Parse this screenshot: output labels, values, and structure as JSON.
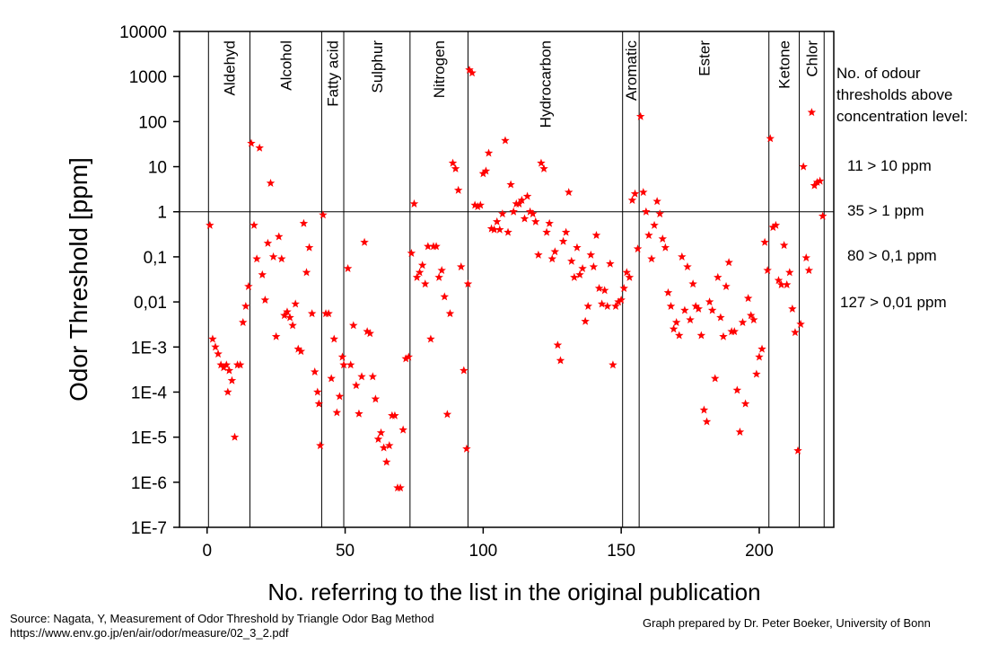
{
  "chart_data": {
    "type": "scatter",
    "title": "",
    "xlabel": "No. referring to the list in the original publication",
    "ylabel": "Odor Threshold [ppm]",
    "xlim": [
      -10,
      227
    ],
    "x_ticks": [
      0,
      50,
      100,
      150,
      200
    ],
    "x_tick_labels": [
      "0",
      "50",
      "100",
      "150",
      "200"
    ],
    "y_scale": "log",
    "ylim": [
      1e-07,
      10000
    ],
    "y_ticks": [
      1e-07,
      1e-06,
      1e-05,
      0.0001,
      0.001,
      0.01,
      0.1,
      1,
      10,
      100,
      1000,
      10000
    ],
    "y_tick_labels": [
      "1E-7",
      "1E-6",
      "1E-5",
      "1E-4",
      "1E-3",
      "0,01",
      "0,1",
      "1",
      "10",
      "100",
      "1000",
      "10000"
    ],
    "grid": false,
    "legend": "none",
    "marker": "star",
    "marker_color": "#ff0000",
    "reference_line_y": 1,
    "groups": [
      {
        "label": "Aldehyd",
        "start": 0.5,
        "end": 15.5
      },
      {
        "label": "Alcohol",
        "start": 15.5,
        "end": 41.5
      },
      {
        "label": "Fatty acid",
        "start": 41.5,
        "end": 49.5
      },
      {
        "label": "Sulphur",
        "start": 49.5,
        "end": 73.5
      },
      {
        "label": "Nitrogen",
        "start": 73.5,
        "end": 94.5
      },
      {
        "label": "Hydrocarbon",
        "start": 94.5,
        "end": 150.5
      },
      {
        "label": "Aromatic",
        "start": 150.5,
        "end": 156.5
      },
      {
        "label": "Ester",
        "start": 156.5,
        "end": 203.5
      },
      {
        "label": "Ketone",
        "start": 203.5,
        "end": 214.5
      },
      {
        "label": "Chlor",
        "start": 214.5,
        "end": 223.5
      }
    ],
    "points": [
      [
        1,
        0.5
      ],
      [
        2,
        0.0015
      ],
      [
        3,
        0.001
      ],
      [
        4,
        0.0007
      ],
      [
        5,
        0.0004
      ],
      [
        6,
        0.00035
      ],
      [
        7,
        0.0004
      ],
      [
        7.5,
        0.0001
      ],
      [
        8,
        0.0003
      ],
      [
        9,
        0.00018
      ],
      [
        10,
        1e-05
      ],
      [
        11,
        0.0004
      ],
      [
        12,
        0.0004
      ],
      [
        13,
        0.0035
      ],
      [
        14,
        0.008
      ],
      [
        15,
        0.022
      ],
      [
        16,
        33
      ],
      [
        17,
        0.5
      ],
      [
        18,
        0.09
      ],
      [
        19,
        26
      ],
      [
        20,
        0.04
      ],
      [
        21,
        0.011
      ],
      [
        22,
        0.2
      ],
      [
        23,
        4.3
      ],
      [
        24,
        0.1
      ],
      [
        25,
        0.0017
      ],
      [
        26,
        0.28
      ],
      [
        27,
        0.09
      ],
      [
        28,
        0.005
      ],
      [
        29,
        0.006
      ],
      [
        30,
        0.0045
      ],
      [
        31,
        0.003
      ],
      [
        32,
        0.009
      ],
      [
        33,
        0.0009
      ],
      [
        34,
        0.0008
      ],
      [
        35,
        0.55
      ],
      [
        36,
        0.045
      ],
      [
        37,
        0.16
      ],
      [
        38,
        0.0055
      ],
      [
        39,
        0.00028
      ],
      [
        40,
        0.0001
      ],
      [
        40.5,
        5.5e-05
      ],
      [
        41,
        6.5e-06
      ],
      [
        42,
        0.85
      ],
      [
        43,
        0.0055
      ],
      [
        44,
        0.0055
      ],
      [
        45,
        0.0002
      ],
      [
        46,
        0.0015
      ],
      [
        47,
        3.5e-05
      ],
      [
        48,
        8e-05
      ],
      [
        49,
        0.0006
      ],
      [
        49.5,
        0.0004
      ],
      [
        51,
        0.055
      ],
      [
        52,
        0.0004
      ],
      [
        53,
        0.003
      ],
      [
        54,
        0.00014
      ],
      [
        55,
        3.3e-05
      ],
      [
        56,
        0.00022
      ],
      [
        57,
        0.21
      ],
      [
        58,
        0.0022
      ],
      [
        59,
        0.002
      ],
      [
        60,
        0.00022
      ],
      [
        61,
        7e-05
      ],
      [
        62,
        9e-06
      ],
      [
        63,
        1.25e-05
      ],
      [
        64,
        5.8e-06
      ],
      [
        65,
        2.8e-06
      ],
      [
        66,
        6.5e-06
      ],
      [
        67,
        3e-05
      ],
      [
        68,
        3e-05
      ],
      [
        69,
        7.5e-07
      ],
      [
        70,
        7.5e-07
      ],
      [
        71,
        1.45e-05
      ],
      [
        72,
        0.00055
      ],
      [
        73,
        0.0006
      ],
      [
        74,
        0.12
      ],
      [
        75,
        1.5
      ],
      [
        76,
        0.035
      ],
      [
        77,
        0.045
      ],
      [
        78,
        0.065
      ],
      [
        79,
        0.025
      ],
      [
        80,
        0.17
      ],
      [
        81,
        0.0015
      ],
      [
        82,
        0.17
      ],
      [
        83,
        0.17
      ],
      [
        84,
        0.035
      ],
      [
        85,
        0.05
      ],
      [
        86,
        0.013
      ],
      [
        87,
        3.2e-05
      ],
      [
        88,
        0.0055
      ],
      [
        89,
        12
      ],
      [
        90,
        9
      ],
      [
        91,
        3
      ],
      [
        92,
        0.06
      ],
      [
        93,
        0.0003
      ],
      [
        94,
        5.5e-06
      ],
      [
        94.5,
        0.025
      ],
      [
        95,
        1400
      ],
      [
        96,
        1200
      ],
      [
        97,
        1.4
      ],
      [
        98,
        1.3
      ],
      [
        99,
        1.4
      ],
      [
        100,
        7
      ],
      [
        101,
        8
      ],
      [
        102,
        20
      ],
      [
        103,
        0.42
      ],
      [
        104,
        0.4
      ],
      [
        105,
        0.6
      ],
      [
        106,
        0.4
      ],
      [
        107,
        0.9
      ],
      [
        108,
        38
      ],
      [
        109,
        0.35
      ],
      [
        110,
        4
      ],
      [
        111,
        1
      ],
      [
        112,
        1.5
      ],
      [
        113,
        1.5
      ],
      [
        114,
        1.8
      ],
      [
        115,
        0.7
      ],
      [
        116,
        2.2
      ],
      [
        117,
        1
      ],
      [
        118,
        0.9
      ],
      [
        119,
        0.6
      ],
      [
        120,
        0.11
      ],
      [
        121,
        12
      ],
      [
        122,
        9
      ],
      [
        123,
        0.35
      ],
      [
        124,
        0.55
      ],
      [
        125,
        0.09
      ],
      [
        126,
        0.13
      ],
      [
        127,
        0.0011
      ],
      [
        128,
        0.0005
      ],
      [
        129,
        0.22
      ],
      [
        130,
        0.35
      ],
      [
        131,
        2.7
      ],
      [
        132,
        0.08
      ],
      [
        133,
        0.035
      ],
      [
        134,
        0.16
      ],
      [
        135,
        0.04
      ],
      [
        136,
        0.055
      ],
      [
        137,
        0.0037
      ],
      [
        138,
        0.008
      ],
      [
        139,
        0.11
      ],
      [
        140,
        0.06
      ],
      [
        141,
        0.3
      ],
      [
        142,
        0.02
      ],
      [
        143,
        0.009
      ],
      [
        144,
        0.018
      ],
      [
        145,
        0.008
      ],
      [
        146,
        0.07
      ],
      [
        147,
        0.0004
      ],
      [
        148,
        0.008
      ],
      [
        149,
        0.01
      ],
      [
        150,
        0.011
      ],
      [
        151,
        0.02
      ],
      [
        152,
        0.045
      ],
      [
        153,
        0.035
      ],
      [
        154,
        1.8
      ],
      [
        155,
        2.5
      ],
      [
        156,
        0.15
      ],
      [
        157,
        130
      ],
      [
        158,
        2.7
      ],
      [
        159,
        1
      ],
      [
        160,
        0.3
      ],
      [
        161,
        0.09
      ],
      [
        162,
        0.5
      ],
      [
        163,
        1.7
      ],
      [
        164,
        0.9
      ],
      [
        165,
        0.25
      ],
      [
        166,
        0.16
      ],
      [
        167,
        0.016
      ],
      [
        168,
        0.008
      ],
      [
        169,
        0.0025
      ],
      [
        170,
        0.0035
      ],
      [
        171,
        0.0018
      ],
      [
        172,
        0.1
      ],
      [
        173,
        0.0065
      ],
      [
        174,
        0.06
      ],
      [
        175,
        0.004
      ],
      [
        176,
        0.025
      ],
      [
        177,
        0.008
      ],
      [
        178,
        0.007
      ],
      [
        179,
        0.0018
      ],
      [
        180,
        4e-05
      ],
      [
        181,
        2.2e-05
      ],
      [
        182,
        0.01
      ],
      [
        183,
        0.0065
      ],
      [
        184,
        0.0002
      ],
      [
        185,
        0.035
      ],
      [
        186,
        0.0045
      ],
      [
        187,
        0.0017
      ],
      [
        188,
        0.022
      ],
      [
        189,
        0.075
      ],
      [
        190,
        0.0022
      ],
      [
        191,
        0.0022
      ],
      [
        192,
        0.00011
      ],
      [
        193,
        1.3e-05
      ],
      [
        194,
        0.0035
      ],
      [
        195,
        5.5e-05
      ],
      [
        196,
        0.012
      ],
      [
        197,
        0.005
      ],
      [
        198,
        0.004
      ],
      [
        199,
        0.00025
      ],
      [
        200,
        0.0006
      ],
      [
        201,
        0.0009
      ],
      [
        202,
        0.21
      ],
      [
        203,
        0.05
      ],
      [
        204,
        42
      ],
      [
        205,
        0.45
      ],
      [
        206,
        0.5
      ],
      [
        207,
        0.03
      ],
      [
        208,
        0.024
      ],
      [
        209,
        0.18
      ],
      [
        210,
        0.024
      ],
      [
        211,
        0.045
      ],
      [
        212,
        0.007
      ],
      [
        213,
        0.0021
      ],
      [
        214,
        5e-06
      ],
      [
        215,
        0.0032
      ],
      [
        216,
        10
      ],
      [
        217,
        0.095
      ],
      [
        218,
        0.05
      ],
      [
        219,
        160
      ],
      [
        220,
        3.8
      ],
      [
        221,
        4.5
      ],
      [
        222,
        4.8
      ],
      [
        223,
        0.8
      ]
    ],
    "side_text": {
      "heading": [
        "No. of odour",
        "thresholds above",
        "concentration level:"
      ],
      "items": [
        "11 > 10 ppm",
        "35 > 1 ppm",
        "80 > 0,1 ppm",
        "127 > 0,01 ppm"
      ]
    }
  },
  "footer": {
    "source_line1": "Source: Nagata, Y, Measurement of Odor Threshold by Triangle Odor Bag Method",
    "source_line2": "https://www.env.go.jp/en/air/odor/measure/02_3_2.pdf",
    "credit": "Graph prepared by Dr. Peter Boeker, University of Bonn"
  }
}
